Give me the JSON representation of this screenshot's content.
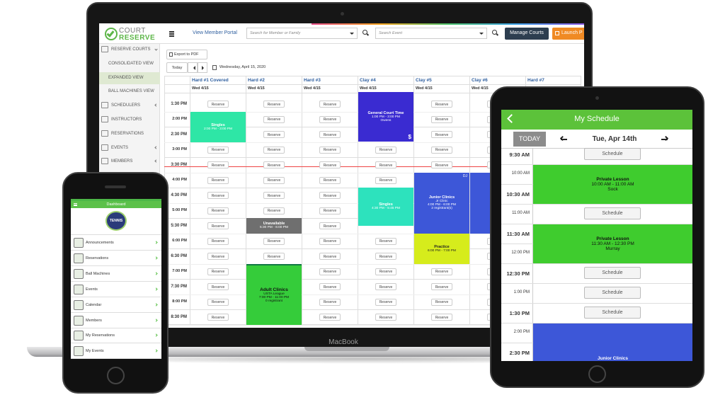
{
  "laptop": {
    "brand": "MacBook",
    "logo": {
      "line1": "COURT",
      "line2": "RESERVE"
    },
    "sidebar": [
      "RESERVE COURTS",
      "CONSOLIDATED VIEW",
      "EXPANDED VIEW",
      "BALL MACHINES VIEW",
      "SCHEDULERS",
      "INSTRUCTORS",
      "RESERVATIONS",
      "EVENTS",
      "MEMBERS"
    ],
    "topbar": {
      "portal": "View Member Portal",
      "member_search": "Search for Member or Family",
      "event_search": "Search Event",
      "manage": "Manage Courts",
      "launch": "Launch P"
    },
    "toolbar": {
      "export": "Export to PDF",
      "today": "Today",
      "date": "Wednesday, April 15, 2020"
    },
    "courts": [
      "Hard #1 Covered",
      "Hard #2",
      "Hard #3",
      "Clay #4",
      "Clay #5",
      "Clay #6",
      "Hard #7"
    ],
    "day": "Wed 4/15",
    "times": [
      "1:30 PM",
      "2:00 PM",
      "2:30 PM",
      "3:00 PM",
      "3:30 PM",
      "4:00 PM",
      "4:30 PM",
      "5:00 PM",
      "5:30 PM",
      "6:00 PM",
      "6:30 PM",
      "7:00 PM",
      "7:30 PM",
      "8:00 PM",
      "8:30 PM"
    ],
    "reserve": "Reserve",
    "events": [
      {
        "title": "Singles",
        "lines": [
          "2:00 PM - 3:00 PM"
        ]
      },
      {
        "title": "General Court Time",
        "lines": [
          "1:00 PM - 3:00 PM",
          "Owens"
        ],
        "badge": "$"
      },
      {
        "title": "Unavailable",
        "lines": [
          "5:30 PM - 6:00 PM"
        ]
      },
      {
        "title": "Singles",
        "lines": [
          "4:30 PM - 5:45 PM"
        ]
      },
      {
        "title": "Junior Clinics",
        "lines": [
          "Jr Clinic",
          "4:00 PM - 6:00 PM",
          "2 registrant(s)"
        ],
        "badge": "DJ"
      },
      {
        "title": "Practice",
        "lines": [
          "6:00 PM - 7:00 PM"
        ]
      },
      {
        "title": "Adult Clinics",
        "lines": [
          "USTA League",
          "7:00 PM - 11:00 PM",
          "0 registrant"
        ]
      }
    ]
  },
  "phone": {
    "title": "Dashboard",
    "logo": "TENNIS",
    "menu": [
      "Announcements",
      "Reservations",
      "Ball Machines",
      "Events",
      "Calendar",
      "Members",
      "My Reservations",
      "My Events"
    ]
  },
  "tablet": {
    "title": "My Schedule",
    "today": "TODAY",
    "date": "Tue, Apr 14th",
    "times": [
      "9:30 AM",
      "10:00 AM",
      "10:30 AM",
      "11:00 AM",
      "11:30 AM",
      "12:00 PM",
      "12:30 PM",
      "1:00 PM",
      "1:30 PM",
      "2:00 PM",
      "2:30 PM"
    ],
    "schedule": "Schedule",
    "events": [
      {
        "title": "Private Lesson",
        "lines": [
          "10:00 AM - 11:00 AM",
          "Sock"
        ]
      },
      {
        "title": "Private Lesson",
        "lines": [
          "11:30 AM - 12:30 PM",
          "Murray"
        ]
      },
      {
        "title": "Junior Clinics",
        "lines": []
      }
    ]
  }
}
